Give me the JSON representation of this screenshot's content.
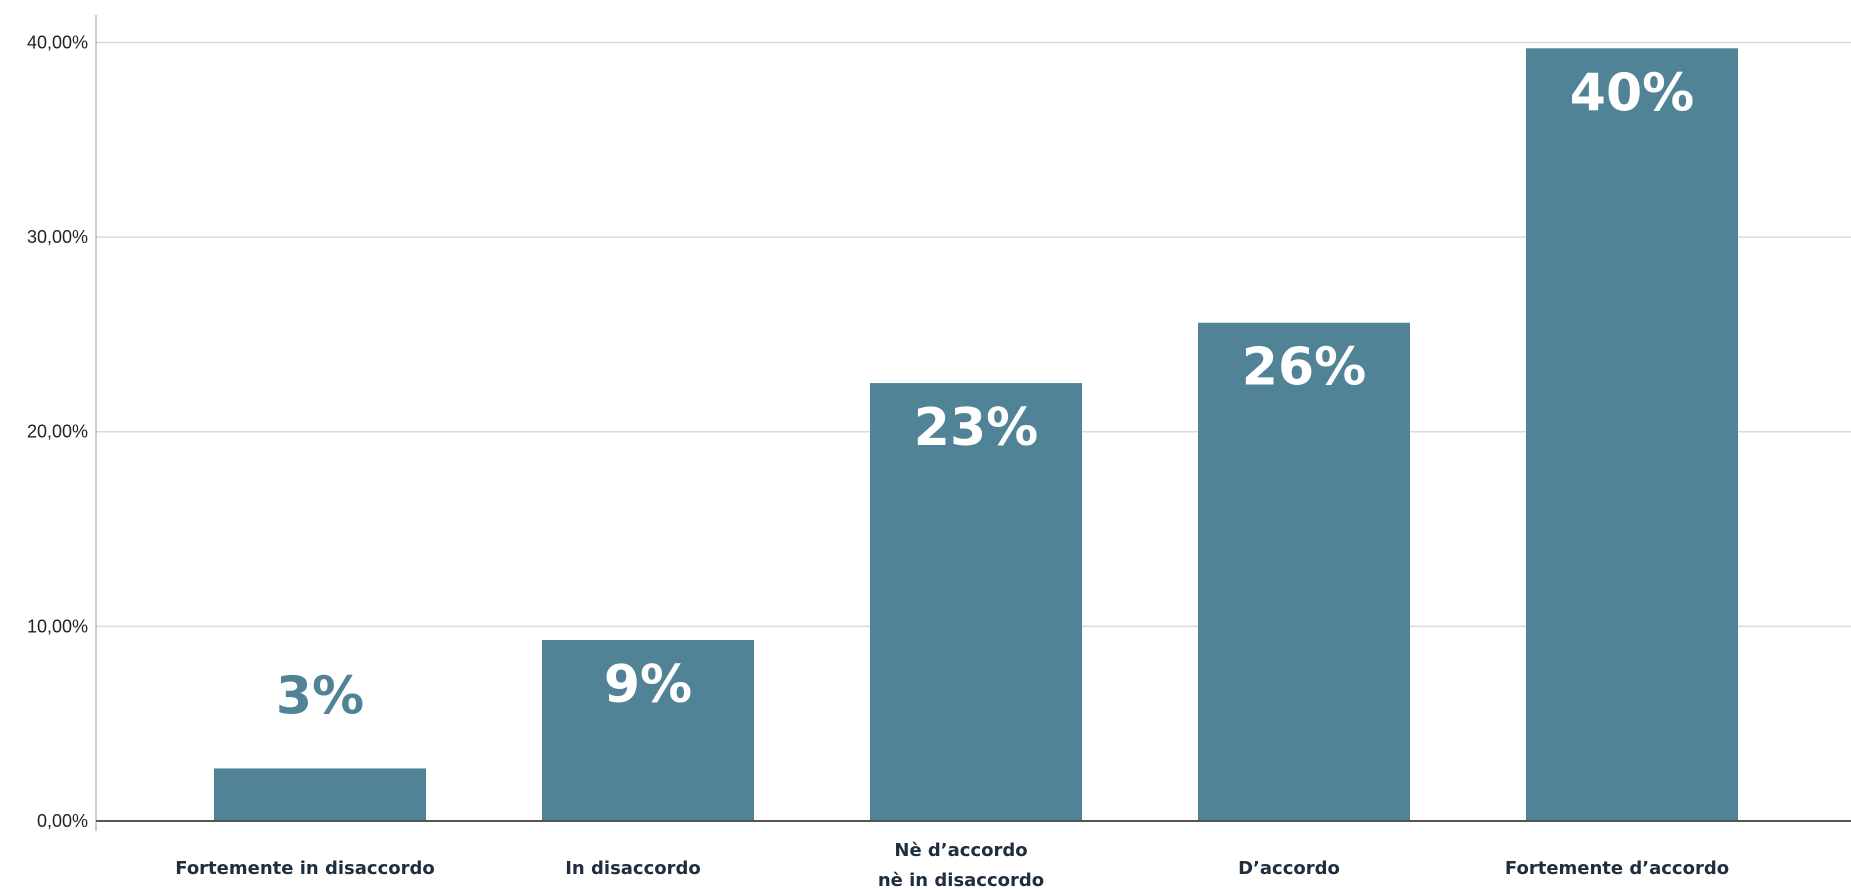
{
  "chart_data": {
    "type": "bar",
    "categories": [
      [
        "Fortemente in disaccordo"
      ],
      [
        "In disaccordo"
      ],
      [
        "Nè d’accordo",
        "nè in disaccordo"
      ],
      [
        "D’accordo"
      ],
      [
        "Fortemente d’accordo"
      ]
    ],
    "values": [
      2.7,
      9.3,
      22.5,
      25.6,
      39.7
    ],
    "data_labels": [
      "3%",
      "9%",
      "23%",
      "26%",
      "40%"
    ],
    "y_ticks": [
      {
        "value": 0,
        "label": "0,00%"
      },
      {
        "value": 10,
        "label": "10,00%"
      },
      {
        "value": 20,
        "label": "20,00%"
      },
      {
        "value": 30,
        "label": "30,00%"
      },
      {
        "value": 40,
        "label": "40,00%"
      }
    ],
    "ylim": [
      0,
      41
    ],
    "grid": true,
    "title": "",
    "xlabel": "",
    "ylabel": "",
    "colors": {
      "bar": "#518396",
      "label_inside": "#ffffff",
      "label_outside": "#518396",
      "grid": "#d9d9d9",
      "axis": "#555555"
    }
  }
}
